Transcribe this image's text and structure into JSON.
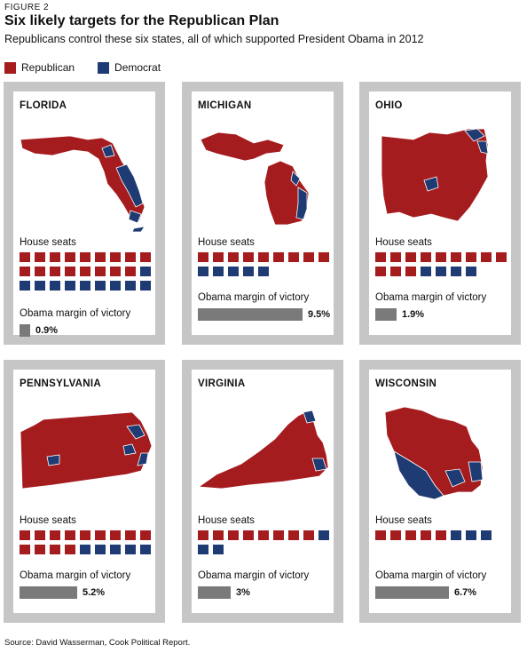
{
  "figure_label": "FIGURE 2",
  "title": "Six likely targets for the Republican Plan",
  "subtitle": "Republicans control these six states, all of which supported President Obama in 2012",
  "legend": [
    {
      "label": "Republican",
      "color": "#a51c1f"
    },
    {
      "label": "Democrat",
      "color": "#1f3b73"
    }
  ],
  "colors": {
    "republican": "#a51c1f",
    "democrat": "#1f3b73",
    "bar": "#7a7a7a",
    "panel_border": "#c6c6c6"
  },
  "source": "Source: David Wasserman, Cook Political Report.",
  "house_seats_label": "House seats",
  "margin_label": "Obama margin of victory",
  "chart_data": [
    {
      "type": "bar",
      "state": "FLORIDA",
      "house_seats": {
        "republican": 17,
        "democrat": 10
      },
      "obama_margin": 0.9,
      "obama_margin_label": "0.9%"
    },
    {
      "type": "bar",
      "state": "MICHIGAN",
      "house_seats": {
        "republican": 9,
        "democrat": 5
      },
      "obama_margin": 9.5,
      "obama_margin_label": "9.5%"
    },
    {
      "type": "bar",
      "state": "OHIO",
      "house_seats": {
        "republican": 12,
        "democrat": 4
      },
      "obama_margin": 1.9,
      "obama_margin_label": "1.9%"
    },
    {
      "type": "bar",
      "state": "PENNSYLVANIA",
      "house_seats": {
        "republican": 13,
        "democrat": 5
      },
      "obama_margin": 5.2,
      "obama_margin_label": "5.2%"
    },
    {
      "type": "bar",
      "state": "VIRGINIA",
      "house_seats": {
        "republican": 8,
        "democrat": 3
      },
      "obama_margin": 3,
      "obama_margin_label": "3%"
    },
    {
      "type": "bar",
      "state": "WISCONSIN",
      "house_seats": {
        "republican": 5,
        "democrat": 3
      },
      "obama_margin": 6.7,
      "obama_margin_label": "6.7%"
    }
  ]
}
